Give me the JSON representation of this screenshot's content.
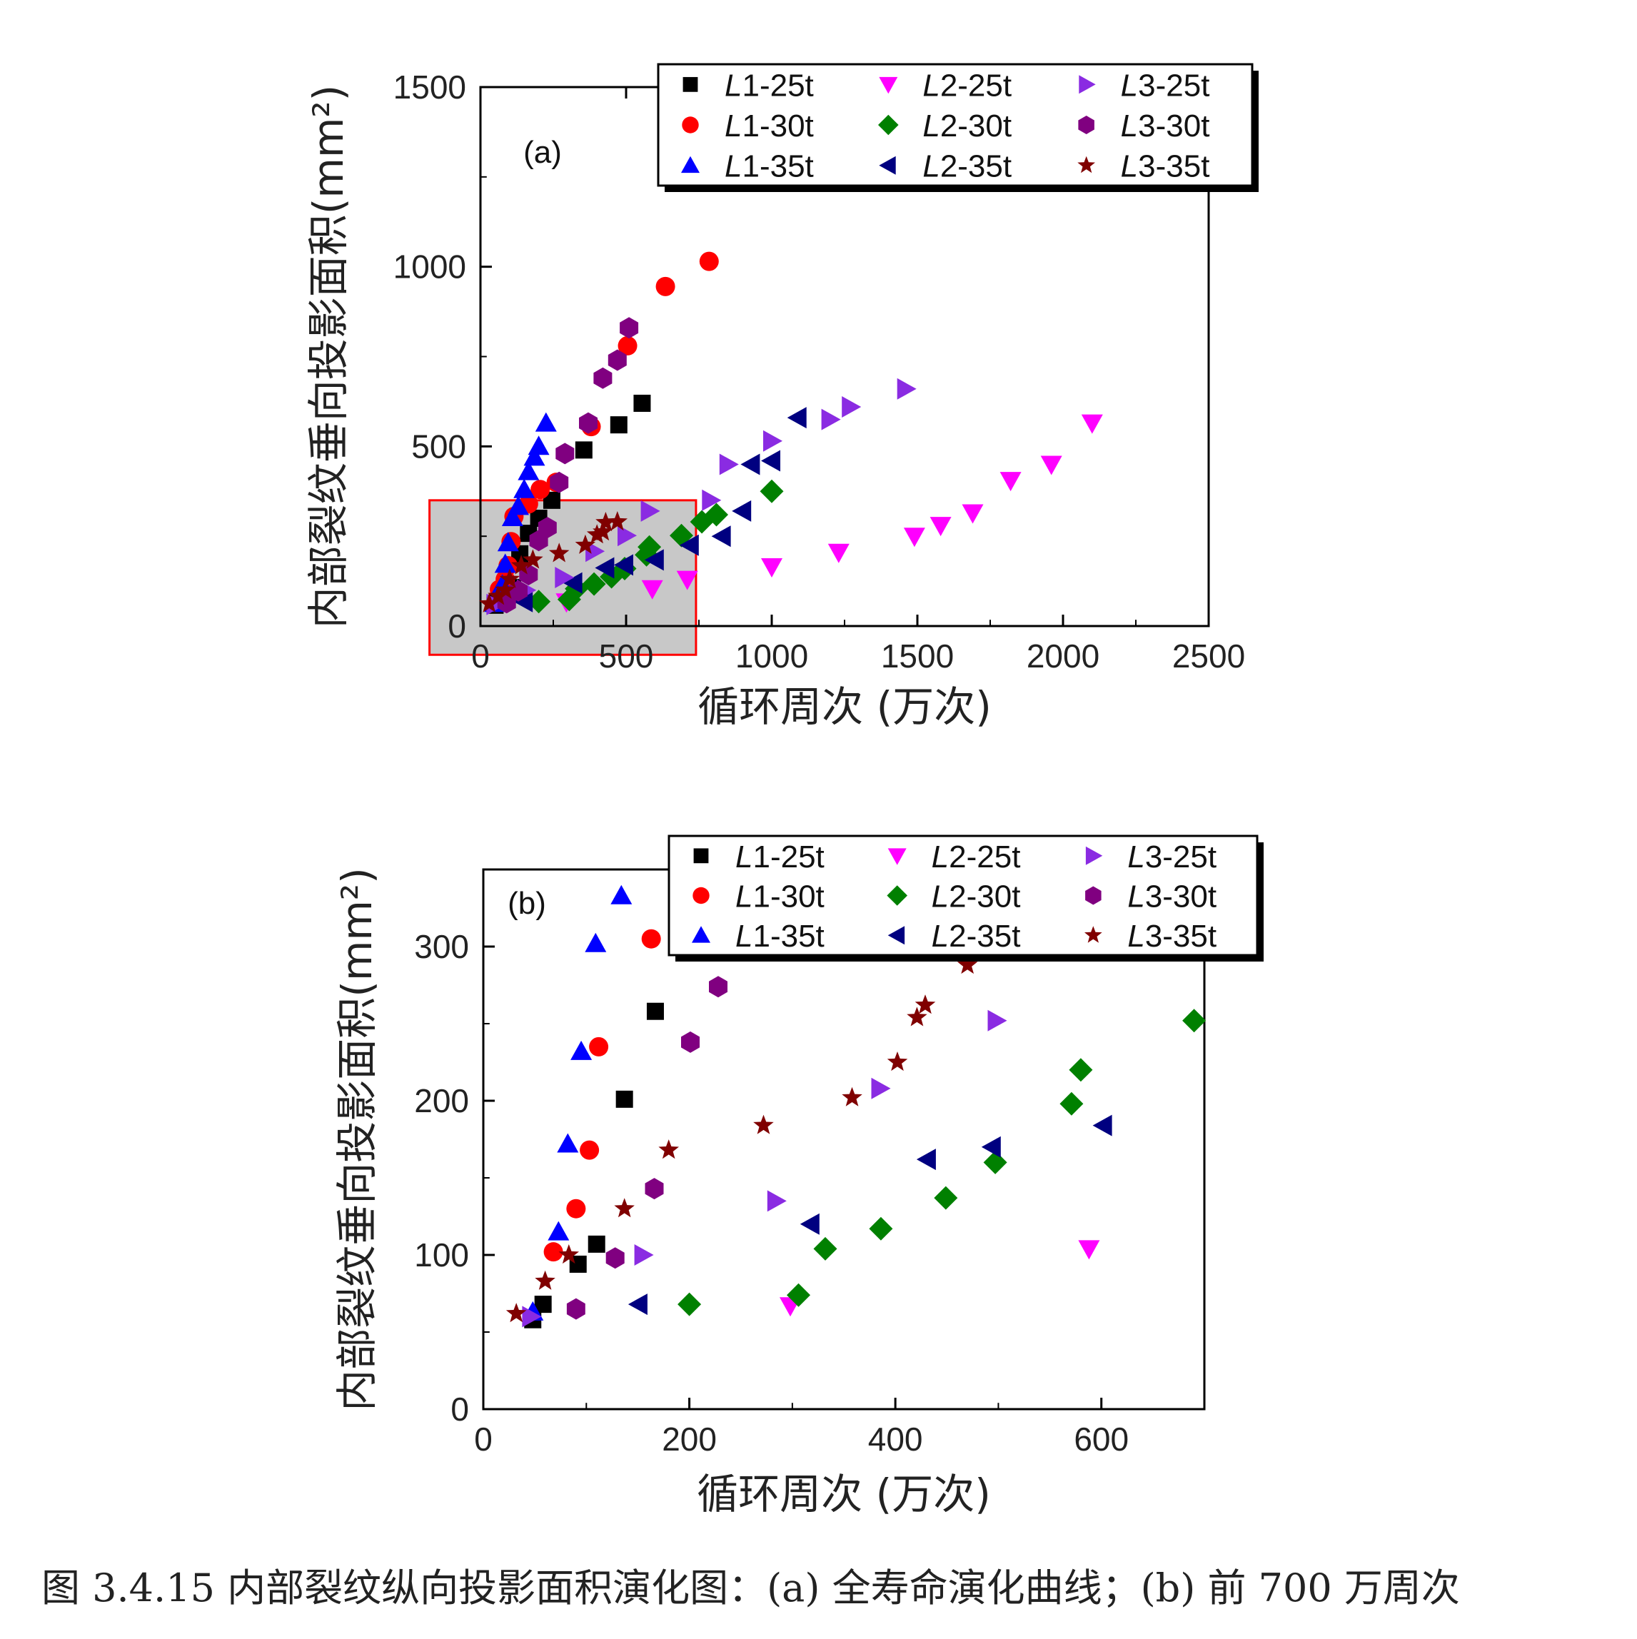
{
  "caption": "图 3.4.15 内部裂纹纵向投影面积演化图：(a) 全寿命演化曲线；(b) 前 700 万周次",
  "colors": {
    "L1-25t": "#000000",
    "L1-30t": "#ff0000",
    "L1-35t": "#0000ff",
    "L2-25t": "#ff00ff",
    "L2-30t": "#008000",
    "L2-35t": "#000080",
    "L3-25t": "#8a2be2",
    "L3-30t": "#800080",
    "L3-35t": "#800000",
    "zoom_box_fill": "#c8c8c8",
    "zoom_box_stroke": "#ff0000"
  },
  "legend_entries": [
    {
      "prefix": "L",
      "suffix": "1-25t",
      "series": "L1-25t",
      "marker": "square"
    },
    {
      "prefix": "L",
      "suffix": "2-25t",
      "series": "L2-25t",
      "marker": "triangle-down"
    },
    {
      "prefix": "L",
      "suffix": "3-25t",
      "series": "L3-25t",
      "marker": "triangle-right"
    },
    {
      "prefix": "L",
      "suffix": "1-30t",
      "series": "L1-30t",
      "marker": "circle"
    },
    {
      "prefix": "L",
      "suffix": "2-30t",
      "series": "L2-30t",
      "marker": "diamond"
    },
    {
      "prefix": "L",
      "suffix": "3-30t",
      "series": "L3-30t",
      "marker": "hexagon"
    },
    {
      "prefix": "L",
      "suffix": "1-35t",
      "series": "L1-35t",
      "marker": "triangle-up"
    },
    {
      "prefix": "L",
      "suffix": "2-35t",
      "series": "L2-35t",
      "marker": "triangle-left"
    },
    {
      "prefix": "L",
      "suffix": "3-35t",
      "series": "L3-35t",
      "marker": "star"
    }
  ],
  "chart_data": [
    {
      "type": "scatter",
      "panel_label": "(a)",
      "xlabel": "循环周次 (万次)",
      "ylabel": "内部裂纹垂向投影面积(mm²)",
      "xlim": [
        0,
        2500
      ],
      "ylim": [
        0,
        1500
      ],
      "xticks": [
        0,
        500,
        1000,
        1500,
        2000,
        2500
      ],
      "yticks": [
        0,
        500,
        1000,
        1500
      ],
      "legend_position": "top-right",
      "zoom_region": {
        "x": [
          -175,
          740
        ],
        "y": [
          -80,
          350
        ]
      },
      "series": [
        {
          "name": "L1-25t",
          "x": [
            50,
            60,
            90,
            110,
            135,
            165,
            200,
            245,
            355,
            475,
            555
          ],
          "y": [
            58,
            68,
            94,
            107,
            201,
            258,
            300,
            350,
            490,
            560,
            620
          ]
        },
        {
          "name": "L1-30t",
          "x": [
            65,
            85,
            95,
            105,
            115,
            165,
            205,
            260,
            380,
            505,
            635,
            785
          ],
          "y": [
            102,
            130,
            168,
            235,
            305,
            340,
            380,
            400,
            555,
            780,
            945,
            1015
          ]
        },
        {
          "name": "L1-35t",
          "x": [
            50,
            75,
            85,
            95,
            110,
            130,
            150,
            165,
            185,
            200,
            225
          ],
          "y": [
            63,
            115,
            172,
            232,
            302,
            333,
            380,
            430,
            470,
            500,
            565
          ]
        },
        {
          "name": "L2-25t",
          "x": [
            295,
            590,
            710,
            1000,
            1230,
            1490,
            1580,
            1690,
            1820,
            1960,
            2100
          ],
          "y": [
            67,
            104,
            130,
            165,
            205,
            250,
            280,
            315,
            405,
            450,
            565
          ]
        },
        {
          "name": "L2-30t",
          "x": [
            200,
            305,
            330,
            390,
            450,
            495,
            570,
            580,
            690,
            760,
            810,
            1000
          ],
          "y": [
            68,
            74,
            104,
            117,
            137,
            160,
            198,
            220,
            252,
            290,
            310,
            375
          ]
        },
        {
          "name": "L2-35t",
          "x": [
            150,
            320,
            430,
            495,
            600,
            720,
            830,
            900,
            930,
            1000,
            1090
          ],
          "y": [
            68,
            120,
            162,
            170,
            184,
            225,
            250,
            320,
            450,
            460,
            580
          ]
        },
        {
          "name": "L3-25t",
          "x": [
            50,
            155,
            285,
            390,
            500,
            580,
            790,
            850,
            1000,
            1200,
            1270,
            1460
          ],
          "y": [
            60,
            100,
            135,
            208,
            252,
            320,
            350,
            450,
            515,
            575,
            610,
            660
          ]
        },
        {
          "name": "L3-30t",
          "x": [
            90,
            130,
            165,
            200,
            230,
            270,
            290,
            370,
            420,
            470,
            510
          ],
          "y": [
            65,
            98,
            143,
            238,
            274,
            400,
            480,
            565,
            690,
            740,
            830
          ]
        },
        {
          "name": "L3-35t",
          "x": [
            30,
            60,
            85,
            100,
            140,
            180,
            270,
            360,
            400,
            420,
            430,
            470
          ],
          "y": [
            62,
            83,
            100,
            130,
            168,
            184,
            202,
            225,
            254,
            262,
            288,
            290
          ]
        }
      ]
    },
    {
      "type": "scatter",
      "panel_label": "(b)",
      "xlabel": "循环周次 (万次)",
      "ylabel": "内部裂纹垂向投影面积(mm²)",
      "xlim": [
        0,
        700
      ],
      "ylim": [
        0,
        350
      ],
      "xticks": [
        0,
        200,
        400,
        600
      ],
      "yticks": [
        0,
        100,
        200,
        300
      ],
      "legend_position": "top-right",
      "series": [
        {
          "name": "L1-25t",
          "x": [
            48,
            58,
            92,
            110,
            137,
            167
          ],
          "y": [
            58,
            68,
            94,
            107,
            201,
            258
          ]
        },
        {
          "name": "L1-30t",
          "x": [
            68,
            90,
            103,
            112,
            163
          ],
          "y": [
            102,
            130,
            168,
            235,
            305
          ]
        },
        {
          "name": "L1-35t",
          "x": [
            48,
            73,
            82,
            95,
            109,
            134
          ],
          "y": [
            63,
            115,
            172,
            232,
            302,
            333
          ]
        },
        {
          "name": "L2-25t",
          "x": [
            298,
            588
          ],
          "y": [
            67,
            104
          ]
        },
        {
          "name": "L2-30t",
          "x": [
            200,
            306,
            332,
            386,
            449,
            497,
            571,
            580,
            690
          ],
          "y": [
            68,
            74,
            104,
            117,
            137,
            160,
            198,
            220,
            252
          ]
        },
        {
          "name": "L2-35t",
          "x": [
            151,
            318,
            431,
            494,
            602
          ],
          "y": [
            68,
            120,
            162,
            170,
            184
          ]
        },
        {
          "name": "L3-25t",
          "x": [
            46,
            155,
            284,
            385,
            498
          ],
          "y": [
            60,
            100,
            135,
            208,
            252
          ]
        },
        {
          "name": "L3-30t",
          "x": [
            90,
            128,
            166,
            201,
            228
          ],
          "y": [
            65,
            98,
            143,
            238,
            274
          ]
        },
        {
          "name": "L3-35t",
          "x": [
            32,
            60,
            83,
            137,
            180,
            272,
            358,
            402,
            421,
            429,
            470
          ],
          "y": [
            62,
            83,
            100,
            130,
            168,
            184,
            202,
            225,
            254,
            262,
            288
          ]
        }
      ]
    }
  ]
}
